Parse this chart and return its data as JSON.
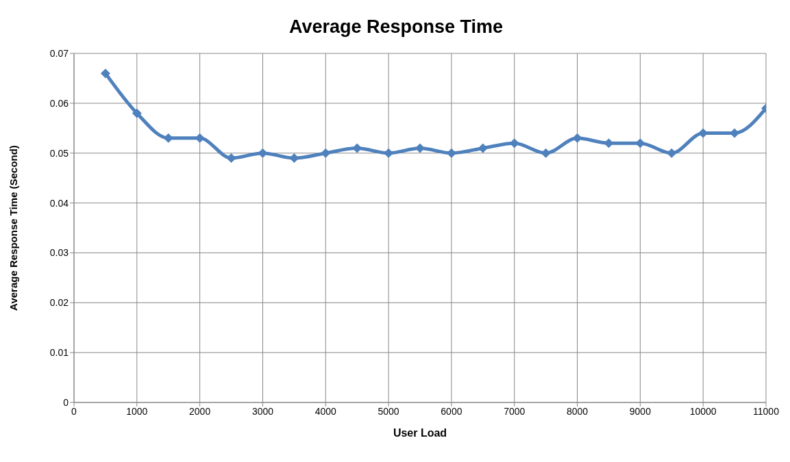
{
  "chart_data": {
    "type": "line",
    "title": "Average Response Time",
    "xlabel": "User Load",
    "ylabel": "Average Response Time (Second)",
    "x": [
      500,
      1000,
      1500,
      2000,
      2500,
      3000,
      3500,
      4000,
      4500,
      5000,
      5500,
      6000,
      6500,
      7000,
      7500,
      8000,
      8500,
      9000,
      9500,
      10000,
      10500,
      11000
    ],
    "series": [
      {
        "color": "#4f81bd",
        "values": [
          0.066,
          0.058,
          0.053,
          0.053,
          0.049,
          0.05,
          0.049,
          0.05,
          0.051,
          0.05,
          0.051,
          0.05,
          0.051,
          0.052,
          0.05,
          0.053,
          0.052,
          0.052,
          0.05,
          0.054,
          0.054,
          0.059
        ]
      }
    ],
    "xlim": [
      0,
      11000
    ],
    "xticks": [
      0,
      1000,
      2000,
      3000,
      4000,
      5000,
      6000,
      7000,
      8000,
      9000,
      10000,
      11000
    ],
    "ylim": [
      0,
      0.07
    ],
    "yticks": [
      0,
      0.01,
      0.02,
      0.03,
      0.04,
      0.05,
      0.06,
      0.07
    ],
    "grid": true,
    "marker": "diamond",
    "line_style": "solid"
  }
}
